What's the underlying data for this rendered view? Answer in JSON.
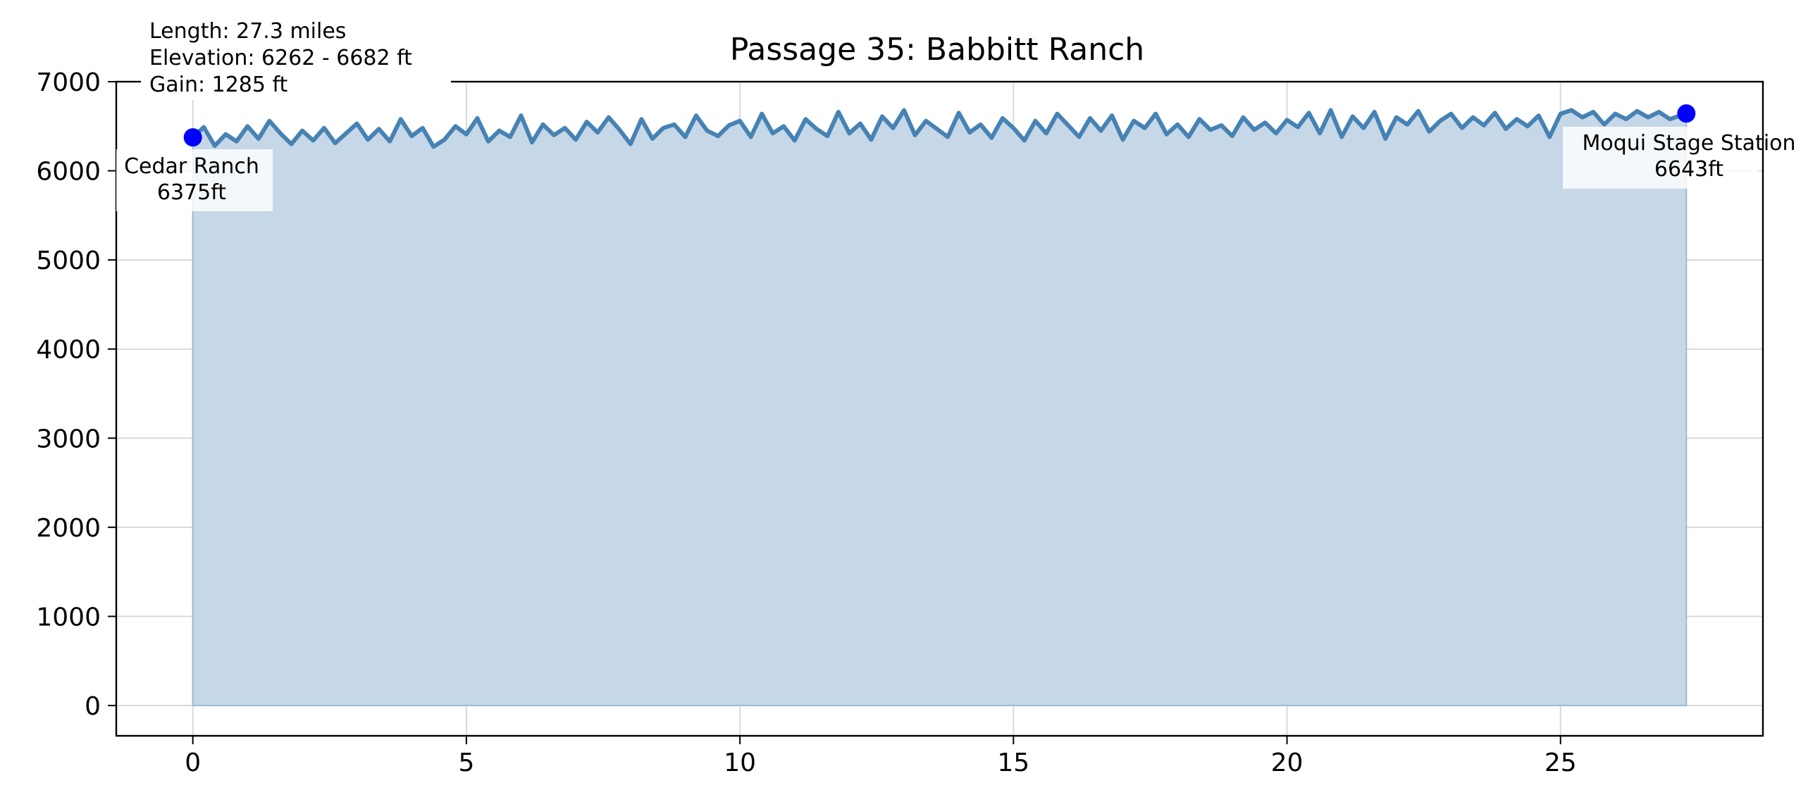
{
  "chart_data": {
    "type": "area",
    "title": "Passage 35: Babbitt Ranch",
    "xlabel": "",
    "ylabel": "",
    "xlim": [
      -1.4,
      28.7
    ],
    "ylim": [
      -340,
      7000
    ],
    "xticks": [
      0,
      5,
      10,
      15,
      20,
      25
    ],
    "yticks": [
      0,
      1000,
      2000,
      3000,
      4000,
      5000,
      6000,
      7000
    ],
    "grid": true,
    "colors": {
      "line": "#4682b4",
      "fill": "#c6d7e7",
      "marker": "#0000ff"
    },
    "info_box": [
      "Length: 27.3 miles",
      "Elevation: 6262 - 6682 ft",
      "Gain: 1285 ft"
    ],
    "endpoints": [
      {
        "name": "Cedar Ranch",
        "label": "6375ft",
        "x": 0,
        "y": 6375
      },
      {
        "name": "Moqui Stage Station",
        "label": "6643ft",
        "x": 27.3,
        "y": 6643
      }
    ],
    "series": [
      {
        "x": [
          0,
          0.2,
          0.4,
          0.6,
          0.8,
          1.0,
          1.2,
          1.4,
          1.6,
          1.8,
          2.0,
          2.2,
          2.4,
          2.6,
          2.8,
          3.0,
          3.2,
          3.4,
          3.6,
          3.8,
          4.0,
          4.2,
          4.4,
          4.6,
          4.8,
          5.0,
          5.2,
          5.4,
          5.6,
          5.8,
          6.0,
          6.2,
          6.4,
          6.6,
          6.8,
          7.0,
          7.2,
          7.4,
          7.6,
          7.8,
          8.0,
          8.2,
          8.4,
          8.6,
          8.8,
          9.0,
          9.2,
          9.4,
          9.6,
          9.8,
          10.0,
          10.2,
          10.4,
          10.6,
          10.8,
          11.0,
          11.2,
          11.4,
          11.6,
          11.8,
          12.0,
          12.2,
          12.4,
          12.6,
          12.8,
          13.0,
          13.2,
          13.4,
          13.6,
          13.8,
          14.0,
          14.2,
          14.4,
          14.6,
          14.8,
          15.0,
          15.2,
          15.4,
          15.6,
          15.8,
          16.0,
          16.2,
          16.4,
          16.6,
          16.8,
          17.0,
          17.2,
          17.4,
          17.6,
          17.8,
          18.0,
          18.2,
          18.4,
          18.6,
          18.8,
          19.0,
          19.2,
          19.4,
          19.6,
          19.8,
          20.0,
          20.2,
          20.4,
          20.6,
          20.8,
          21.0,
          21.2,
          21.4,
          21.6,
          21.8,
          22.0,
          22.2,
          22.4,
          22.6,
          22.8,
          23.0,
          23.2,
          23.4,
          23.6,
          23.8,
          24.0,
          24.2,
          24.4,
          24.6,
          24.8,
          25.0,
          25.2,
          25.4,
          25.6,
          25.8,
          26.0,
          26.2,
          26.4,
          26.6,
          26.8,
          27.0,
          27.3
        ],
        "y": [
          6375,
          6490,
          6280,
          6410,
          6330,
          6500,
          6360,
          6560,
          6420,
          6300,
          6450,
          6340,
          6480,
          6310,
          6420,
          6530,
          6350,
          6470,
          6330,
          6580,
          6390,
          6480,
          6270,
          6350,
          6500,
          6410,
          6590,
          6330,
          6450,
          6380,
          6620,
          6320,
          6520,
          6400,
          6480,
          6350,
          6550,
          6430,
          6600,
          6460,
          6300,
          6580,
          6360,
          6480,
          6520,
          6380,
          6620,
          6450,
          6390,
          6510,
          6560,
          6380,
          6640,
          6420,
          6500,
          6340,
          6580,
          6470,
          6390,
          6660,
          6420,
          6530,
          6350,
          6610,
          6480,
          6680,
          6400,
          6560,
          6470,
          6380,
          6650,
          6430,
          6520,
          6370,
          6590,
          6480,
          6340,
          6560,
          6420,
          6640,
          6510,
          6380,
          6590,
          6450,
          6620,
          6350,
          6560,
          6480,
          6640,
          6410,
          6520,
          6380,
          6580,
          6460,
          6510,
          6390,
          6600,
          6460,
          6540,
          6420,
          6570,
          6490,
          6650,
          6420,
          6680,
          6380,
          6610,
          6480,
          6660,
          6360,
          6600,
          6520,
          6670,
          6440,
          6560,
          6640,
          6480,
          6600,
          6510,
          6650,
          6470,
          6580,
          6500,
          6620,
          6380,
          6640,
          6680,
          6600,
          6660,
          6520,
          6640,
          6580,
          6670,
          6600,
          6660,
          6580,
          6643
        ]
      }
    ]
  }
}
